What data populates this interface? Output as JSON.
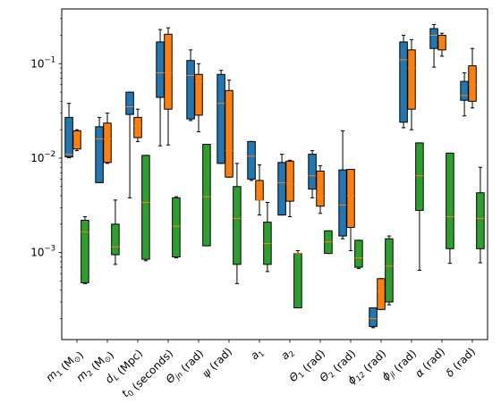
{
  "chart_data": {
    "type": "box",
    "title": "",
    "xlabel": "",
    "ylabel": "",
    "yscale": "log",
    "ylim": [
      0.00012,
      0.38
    ],
    "y_ticks": [
      {
        "value": 0.001,
        "base": "10",
        "exp": "−3"
      },
      {
        "value": 0.01,
        "base": "10",
        "exp": "−2"
      },
      {
        "value": 0.1,
        "base": "10",
        "exp": "−1"
      }
    ],
    "grid": false,
    "legend": "none",
    "categories": [
      {
        "main": "m",
        "sub": "1",
        "unit": " (M",
        "unit_sub": "⊙",
        "unit_end": ")"
      },
      {
        "main": "m",
        "sub": "2",
        "unit": " (M",
        "unit_sub": "⊙",
        "unit_end": ")"
      },
      {
        "main": "d",
        "sub": "L",
        "unit": " (Mpc)"
      },
      {
        "main": "t",
        "sub": "0",
        "unit": " (seconds)"
      },
      {
        "main": "Θ",
        "sub": "jn",
        "unit": " (rad)"
      },
      {
        "main": "ψ",
        "sub": "",
        "unit": " (rad)"
      },
      {
        "main": "a",
        "sub": "1",
        "unit": ""
      },
      {
        "main": "a",
        "sub": "2",
        "unit": ""
      },
      {
        "main": "Θ",
        "sub": "1",
        "unit": " (rad)"
      },
      {
        "main": "Θ",
        "sub": "2",
        "unit": " (rad)"
      },
      {
        "main": "ϕ",
        "sub": "12",
        "unit": " (rad)"
      },
      {
        "main": "ϕ",
        "sub": "jl",
        "unit": " (rad)"
      },
      {
        "main": "α",
        "sub": "",
        "unit": " (rad)"
      },
      {
        "main": "δ",
        "sub": "",
        "unit": " (rad)"
      }
    ],
    "series": [
      {
        "color": "#1f77b4",
        "boxes": [
          {
            "wl": 0.0101,
            "q1": 0.0103,
            "med": 0.011,
            "q3": 0.027,
            "wh": 0.038
          },
          {
            "wl": 0.0055,
            "q1": 0.0055,
            "med": 0.016,
            "q3": 0.0215,
            "wh": 0.027
          },
          {
            "wl": 0.0038,
            "q1": 0.029,
            "med": 0.035,
            "q3": 0.05,
            "wh": 0.05
          },
          {
            "wl": 0.0135,
            "q1": 0.044,
            "med": 0.08,
            "q3": 0.17,
            "wh": 0.23
          },
          {
            "wl": 0.025,
            "q1": 0.026,
            "med": 0.075,
            "q3": 0.108,
            "wh": 0.14
          },
          {
            "wl": 0.0088,
            "q1": 0.0088,
            "med": 0.038,
            "q3": 0.077,
            "wh": 0.085
          },
          {
            "wl": 0.0058,
            "q1": 0.006,
            "med": 0.0105,
            "q3": 0.015,
            "wh": 0.015
          },
          {
            "wl": 0.0025,
            "q1": 0.0025,
            "med": 0.0055,
            "q3": 0.009,
            "wh": 0.011
          },
          {
            "wl": 0.0038,
            "q1": 0.0047,
            "med": 0.0065,
            "q3": 0.011,
            "wh": 0.012
          },
          {
            "wl": 0.0014,
            "q1": 0.0015,
            "med": 0.0032,
            "q3": 0.0075,
            "wh": 0.0195
          },
          {
            "wl": 0.00016,
            "q1": 0.000165,
            "med": 0.0002,
            "q3": 0.00026,
            "wh": 0.00026
          },
          {
            "wl": 0.021,
            "q1": 0.024,
            "med": 0.11,
            "q3": 0.17,
            "wh": 0.2
          },
          {
            "wl": 0.092,
            "q1": 0.145,
            "med": 0.2,
            "q3": 0.235,
            "wh": 0.26
          },
          {
            "wl": 0.028,
            "q1": 0.041,
            "med": 0.046,
            "q3": 0.065,
            "wh": 0.08
          }
        ]
      },
      {
        "color": "#ff7f0e",
        "boxes": [
          {
            "wl": 0.012,
            "q1": 0.0125,
            "med": 0.018,
            "q3": 0.0195,
            "wh": 0.02
          },
          {
            "wl": 0.0088,
            "q1": 0.009,
            "med": 0.016,
            "q3": 0.0235,
            "wh": 0.03
          },
          {
            "wl": 0.015,
            "q1": 0.0165,
            "med": 0.022,
            "q3": 0.027,
            "wh": 0.033
          },
          {
            "wl": 0.0138,
            "q1": 0.033,
            "med": 0.08,
            "q3": 0.205,
            "wh": 0.24
          },
          {
            "wl": 0.019,
            "q1": 0.0285,
            "med": 0.065,
            "q3": 0.077,
            "wh": 0.1
          },
          {
            "wl": 0.0063,
            "q1": 0.0063,
            "med": 0.012,
            "q3": 0.052,
            "wh": 0.067
          },
          {
            "wl": 0.0025,
            "q1": 0.0036,
            "med": 0.0036,
            "q3": 0.0058,
            "wh": 0.0085
          },
          {
            "wl": 0.0024,
            "q1": 0.0035,
            "med": 0.0053,
            "q3": 0.0093,
            "wh": 0.0095
          },
          {
            "wl": 0.0026,
            "q1": 0.0031,
            "med": 0.004,
            "q3": 0.0073,
            "wh": 0.0083
          },
          {
            "wl": 0.00105,
            "q1": 0.00185,
            "med": 0.004,
            "q3": 0.0076,
            "wh": 0.0076
          },
          {
            "wl": 0.00025,
            "q1": 0.00025,
            "med": 0.00039,
            "q3": 0.00053,
            "wh": 0.00053
          },
          {
            "wl": 0.02,
            "q1": 0.033,
            "med": 0.09,
            "q3": 0.14,
            "wh": 0.18
          },
          {
            "wl": 0.12,
            "q1": 0.14,
            "med": 0.18,
            "q3": 0.2,
            "wh": 0.21
          },
          {
            "wl": 0.034,
            "q1": 0.04,
            "med": 0.06,
            "q3": 0.095,
            "wh": 0.145
          }
        ]
      },
      {
        "color": "#2ca02c",
        "boxes": [
          {
            "wl": 0.00047,
            "q1": 0.00048,
            "med": 0.00165,
            "q3": 0.0022,
            "wh": 0.0024
          },
          {
            "wl": 0.00075,
            "q1": 0.00095,
            "med": 0.00115,
            "q3": 0.002,
            "wh": 0.0036
          },
          {
            "wl": 0.00082,
            "q1": 0.00085,
            "med": 0.0034,
            "q3": 0.0107,
            "wh": 0.0107
          },
          {
            "wl": 0.00088,
            "q1": 0.0009,
            "med": 0.0019,
            "q3": 0.0038,
            "wh": 0.0039
          },
          {
            "wl": 0.00118,
            "q1": 0.00118,
            "med": 0.0039,
            "q3": 0.014,
            "wh": 0.014
          },
          {
            "wl": 0.00047,
            "q1": 0.00075,
            "med": 0.0023,
            "q3": 0.005,
            "wh": 0.0088
          },
          {
            "wl": 0.00063,
            "q1": 0.00075,
            "med": 0.00125,
            "q3": 0.0021,
            "wh": 0.0034
          },
          {
            "wl": 0.00026,
            "q1": 0.00026,
            "med": 0.00098,
            "q3": 0.00098,
            "wh": 0.00105
          },
          {
            "wl": 0.00098,
            "q1": 0.00098,
            "med": 0.0013,
            "q3": 0.0017,
            "wh": 0.0017
          },
          {
            "wl": 0.00068,
            "q1": 0.0007,
            "med": 0.00088,
            "q3": 0.00135,
            "wh": 0.00135
          },
          {
            "wl": 0.00028,
            "q1": 0.0003,
            "med": 0.00072,
            "q3": 0.0014,
            "wh": 0.0015
          },
          {
            "wl": 0.00065,
            "q1": 0.0028,
            "med": 0.0065,
            "q3": 0.0145,
            "wh": 0.0145
          },
          {
            "wl": 0.00077,
            "q1": 0.0011,
            "med": 0.0024,
            "q3": 0.0113,
            "wh": 0.0113
          },
          {
            "wl": 0.00078,
            "q1": 0.0011,
            "med": 0.0023,
            "q3": 0.0043,
            "wh": 0.008
          }
        ]
      }
    ]
  }
}
